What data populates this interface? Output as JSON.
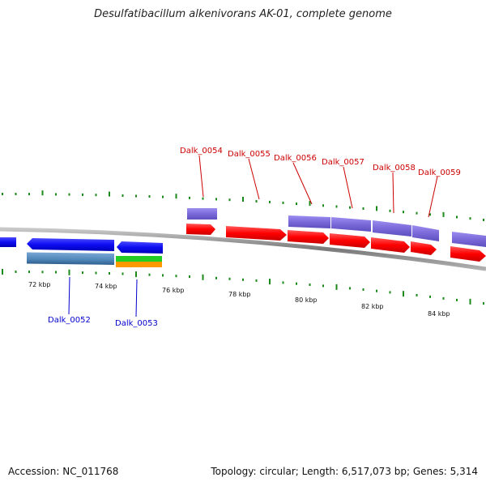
{
  "title": "Desulfatibacillum alkenivorans AK-01, complete genome",
  "footer": {
    "accession": "Accession: NC_011768",
    "summary": "Topology: circular; Length: 6,517,073 bp; Genes: 5,314"
  },
  "scale": {
    "ticks": [
      {
        "label": "72 kbp"
      },
      {
        "label": "74 kbp"
      },
      {
        "label": "76 kbp"
      },
      {
        "label": "78 kbp"
      },
      {
        "label": "80 kbp"
      },
      {
        "label": "82 kbp"
      },
      {
        "label": "84 kbp"
      }
    ]
  },
  "genes": {
    "top_labels": [
      {
        "label": "Dalk_0054"
      },
      {
        "label": "Dalk_0055"
      },
      {
        "label": "Dalk_0056"
      },
      {
        "label": "Dalk_0057"
      },
      {
        "label": "Dalk_0058"
      },
      {
        "label": "Dalk_0059"
      }
    ],
    "bottom_labels": [
      {
        "label": "Dalk_0052"
      },
      {
        "label": "Dalk_0053"
      }
    ]
  },
  "colors": {
    "forward_gene": "#ff0000",
    "forward_cds": "#7b68d8",
    "reverse_gene": "#1010ff",
    "reverse_cds": "#4f86b8",
    "rrna_green": "#22cc22",
    "rrna_orange": "#ff9900",
    "backbone": "#808080",
    "tick_green": "#1a8a1a",
    "label_red": "#cc0000",
    "label_blue": "#0000cc"
  }
}
